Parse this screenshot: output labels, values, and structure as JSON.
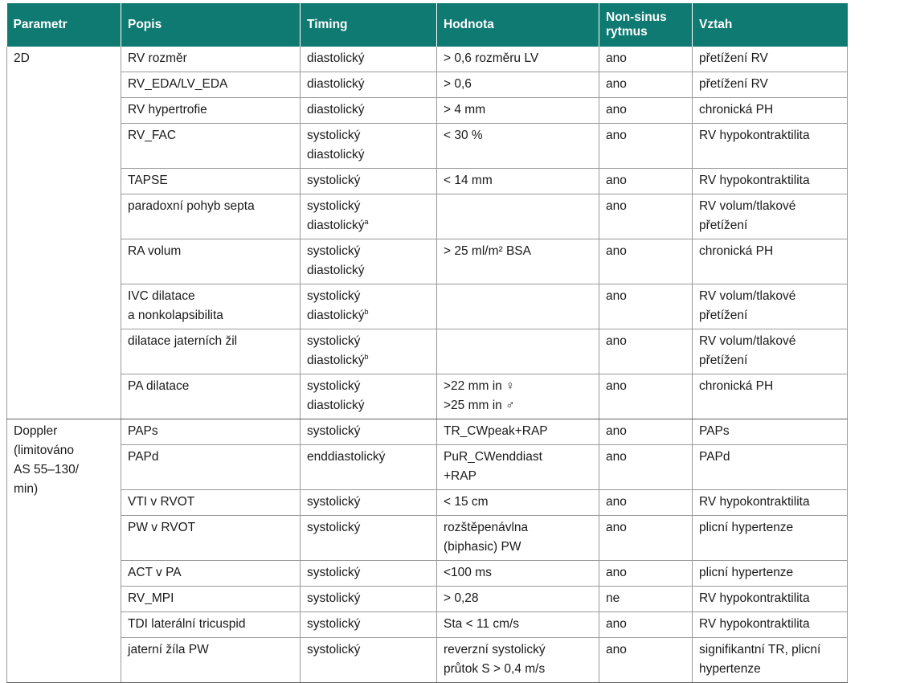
{
  "table": {
    "headers": [
      "Parametr",
      "Popis",
      "Timing",
      "Hodnota",
      "Non-sinus rytmus",
      "Vztah"
    ],
    "groups": [
      {
        "parameter": [
          "2D"
        ],
        "rows": [
          {
            "popis": [
              "RV rozměr"
            ],
            "timing": [
              "diastolický"
            ],
            "timing_sup": [
              "",
              ""
            ],
            "hodnota": [
              "> 0,6 rozměru LV"
            ],
            "nonsinus": "ano",
            "vztah": [
              "přetížení RV"
            ]
          },
          {
            "popis": [
              "RV_EDA/LV_EDA"
            ],
            "timing": [
              "diastolický"
            ],
            "timing_sup": [
              "",
              ""
            ],
            "hodnota": [
              "> 0,6"
            ],
            "nonsinus": "ano",
            "vztah": [
              "přetížení RV"
            ]
          },
          {
            "popis": [
              "RV hypertrofie"
            ],
            "timing": [
              "diastolický"
            ],
            "timing_sup": [
              "",
              ""
            ],
            "hodnota": [
              "> 4 mm"
            ],
            "nonsinus": "ano",
            "vztah": [
              "chronická PH"
            ]
          },
          {
            "popis": [
              "RV_FAC"
            ],
            "timing": [
              "systolický",
              "diastolický"
            ],
            "timing_sup": [
              "",
              ""
            ],
            "hodnota": [
              "< 30 %"
            ],
            "nonsinus": "ano",
            "vztah": [
              "RV hypokontraktilita"
            ]
          },
          {
            "popis": [
              "TAPSE"
            ],
            "timing": [
              "systolický"
            ],
            "timing_sup": [
              "",
              ""
            ],
            "hodnota": [
              "< 14 mm"
            ],
            "nonsinus": "ano",
            "vztah": [
              "RV hypokontraktilita"
            ]
          },
          {
            "popis": [
              "paradoxní pohyb septa"
            ],
            "timing": [
              "systolický",
              "diastolický"
            ],
            "timing_sup": [
              "",
              "a"
            ],
            "hodnota": [
              ""
            ],
            "nonsinus": "ano",
            "vztah": [
              "RV volum/tlakové",
              "přetížení"
            ]
          },
          {
            "popis": [
              "RA volum"
            ],
            "timing": [
              "systolický",
              "diastolický"
            ],
            "timing_sup": [
              "",
              ""
            ],
            "hodnota": [
              "> 25 ml/m² BSA"
            ],
            "nonsinus": "ano",
            "vztah": [
              "chronická PH"
            ]
          },
          {
            "popis": [
              "IVC dilatace",
              "a nonkolapsibilita"
            ],
            "timing": [
              "systolický",
              "diastolický"
            ],
            "timing_sup": [
              "",
              "b"
            ],
            "hodnota": [
              ""
            ],
            "nonsinus": "ano",
            "vztah": [
              "RV volum/tlakové",
              "přetížení"
            ]
          },
          {
            "popis": [
              "dilatace jaterních žil"
            ],
            "timing": [
              "systolický",
              "diastolický"
            ],
            "timing_sup": [
              "",
              "b"
            ],
            "hodnota": [
              ""
            ],
            "nonsinus": "ano",
            "vztah": [
              "RV volum/tlakové",
              "přetížení"
            ]
          },
          {
            "popis": [
              "PA dilatace"
            ],
            "timing": [
              "systolický",
              "diastolický"
            ],
            "timing_sup": [
              "",
              ""
            ],
            "hodnota": [
              ">22 mm in ♀",
              ">25 mm in ♂"
            ],
            "nonsinus": "ano",
            "vztah": [
              "chronická PH"
            ]
          }
        ]
      },
      {
        "parameter": [
          "Doppler",
          "(limitováno",
          "AS 55–130/",
          "min)"
        ],
        "rows": [
          {
            "popis": [
              "PAPs"
            ],
            "timing": [
              "systolický"
            ],
            "timing_sup": [
              "",
              ""
            ],
            "hodnota": [
              "TR_CWpeak+RAP"
            ],
            "nonsinus": "ano",
            "vztah": [
              "PAPs"
            ]
          },
          {
            "popis": [
              "PAPd"
            ],
            "timing": [
              "enddiastolický"
            ],
            "timing_sup": [
              "",
              ""
            ],
            "hodnota": [
              "PuR_CWenddiast",
              "+RAP"
            ],
            "nonsinus": "ano",
            "vztah": [
              "PAPd"
            ]
          },
          {
            "popis": [
              "VTI v RVOT"
            ],
            "timing": [
              "systolický"
            ],
            "timing_sup": [
              "",
              ""
            ],
            "hodnota": [
              "< 15 cm"
            ],
            "nonsinus": "ano",
            "vztah": [
              "RV hypokontraktilita"
            ]
          },
          {
            "popis": [
              "PW v RVOT"
            ],
            "timing": [
              "systolický"
            ],
            "timing_sup": [
              "",
              ""
            ],
            "hodnota": [
              "rozštěpenávlna",
              "(biphasic) PW"
            ],
            "nonsinus": "ano",
            "vztah": [
              "plicní hypertenze"
            ]
          },
          {
            "popis": [
              "ACT v PA"
            ],
            "timing": [
              "systolický"
            ],
            "timing_sup": [
              "",
              ""
            ],
            "hodnota": [
              "<100 ms"
            ],
            "nonsinus": "ano",
            "vztah": [
              "plicní hypertenze"
            ]
          },
          {
            "popis": [
              "RV_MPI"
            ],
            "timing": [
              "systolický"
            ],
            "timing_sup": [
              "",
              ""
            ],
            "hodnota": [
              "> 0,28"
            ],
            "nonsinus": "ne",
            "vztah": [
              "RV hypokontraktilita"
            ]
          },
          {
            "popis": [
              "TDI laterální tricuspid"
            ],
            "timing": [
              "systolický"
            ],
            "timing_sup": [
              "",
              ""
            ],
            "hodnota": [
              "Sta < 11 cm/s"
            ],
            "nonsinus": "ano",
            "vztah": [
              "RV hypokontraktilita"
            ]
          },
          {
            "popis": [
              "jaterní žíla PW"
            ],
            "timing": [
              "systolický"
            ],
            "timing_sup": [
              "",
              ""
            ],
            "hodnota": [
              "reverzní systolický",
              "průtok S > 0,4 m/s"
            ],
            "nonsinus": "ano",
            "vztah": [
              "signifikantní TR, plicní",
              "hypertenze"
            ]
          }
        ]
      }
    ]
  },
  "colors": {
    "header_bg": "#0f7a72",
    "header_text": "#ffffff",
    "grid": "#9a9a9a"
  }
}
